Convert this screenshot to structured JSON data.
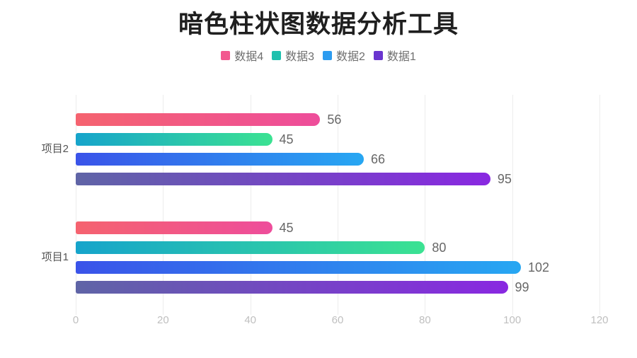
{
  "title": "暗色柱状图数据分析工具",
  "legend": {
    "items": [
      {
        "label": "数据4",
        "color": "#F2588F"
      },
      {
        "label": "数据3",
        "color": "#1FC0AE"
      },
      {
        "label": "数据2",
        "color": "#2D9CF0"
      },
      {
        "label": "数据1",
        "color": "#6A35CF"
      }
    ]
  },
  "chart_data": {
    "type": "bar",
    "orientation": "horizontal",
    "title": "暗色柱状图数据分析工具",
    "categories": [
      "项目2",
      "项目1"
    ],
    "series": [
      {
        "name": "数据4",
        "values": [
          56,
          45
        ],
        "gradient": [
          "#F5636F",
          "#EE4D9B"
        ]
      },
      {
        "name": "数据3",
        "values": [
          45,
          80
        ],
        "gradient": [
          "#16A4CB",
          "#3BE292"
        ]
      },
      {
        "name": "数据2",
        "values": [
          66,
          102
        ],
        "gradient": [
          "#3A53E9",
          "#27A7F2"
        ]
      },
      {
        "name": "数据1",
        "values": [
          95,
          99
        ],
        "gradient": [
          "#5F64A6",
          "#8928E1"
        ]
      }
    ],
    "value_labels": [
      [
        56,
        45,
        66,
        95
      ],
      [
        45,
        80,
        102,
        99
      ]
    ],
    "xlim": [
      0,
      120
    ],
    "xticks": [
      "0",
      "20",
      "40",
      "60",
      "80",
      "100",
      "120"
    ],
    "grid": true,
    "legend_position": "top"
  },
  "colors": {
    "background": "#FFFFFF",
    "title_text": "#1F1F1F",
    "legend_text": "#6E6E6E",
    "category_text": "#555555",
    "value_text": "#676767",
    "tick_text": "#BFBFBF",
    "gridline": "#EDEDED"
  }
}
